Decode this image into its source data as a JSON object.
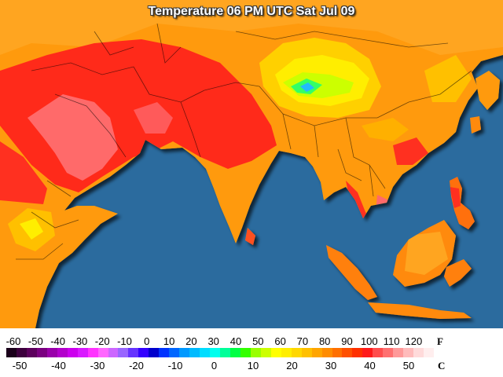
{
  "title": "Temperature 06 PM UTC Sat Jul 09",
  "legend": {
    "fahrenheit_unit": "F",
    "celsius_unit": "C",
    "fahrenheit_ticks": [
      "-60",
      "-50",
      "-40",
      "-30",
      "-20",
      "-10",
      "0",
      "10",
      "20",
      "30",
      "40",
      "50",
      "60",
      "70",
      "80",
      "90",
      "100",
      "110",
      "120"
    ],
    "celsius_ticks": [
      "-50",
      "-40",
      "-30",
      "-20",
      "-10",
      "0",
      "10",
      "20",
      "30",
      "40",
      "50"
    ],
    "colors": [
      "#1a001a",
      "#3d003d",
      "#5c005c",
      "#7a0080",
      "#9900aa",
      "#b300cc",
      "#cc00ee",
      "#d91aff",
      "#ff33ff",
      "#ff66ff",
      "#cc66ff",
      "#9966ff",
      "#6633ff",
      "#3300ff",
      "#0000cc",
      "#0033ff",
      "#0066ff",
      "#0099ff",
      "#00bbff",
      "#00ddff",
      "#00ffee",
      "#00ff99",
      "#00ff44",
      "#33ff00",
      "#99ff00",
      "#ccff00",
      "#ffff00",
      "#ffee00",
      "#ffd700",
      "#ffc000",
      "#ffa500",
      "#ff8c00",
      "#ff7000",
      "#ff5000",
      "#ff3000",
      "#ff1a1a",
      "#ff4d4d",
      "#ff7070",
      "#ff9999",
      "#ffbbbb",
      "#ffdada",
      "#ffeeee"
    ]
  },
  "map_colors": {
    "ocean": "#2b6b9e",
    "base_land": "#ff9a10",
    "hot": "#ff2a1a",
    "hottest": "#ff6a6a",
    "warm": "#ffc000",
    "cool": "#ffee00",
    "cold": "#33ff66",
    "coldest": "#22bbff"
  }
}
